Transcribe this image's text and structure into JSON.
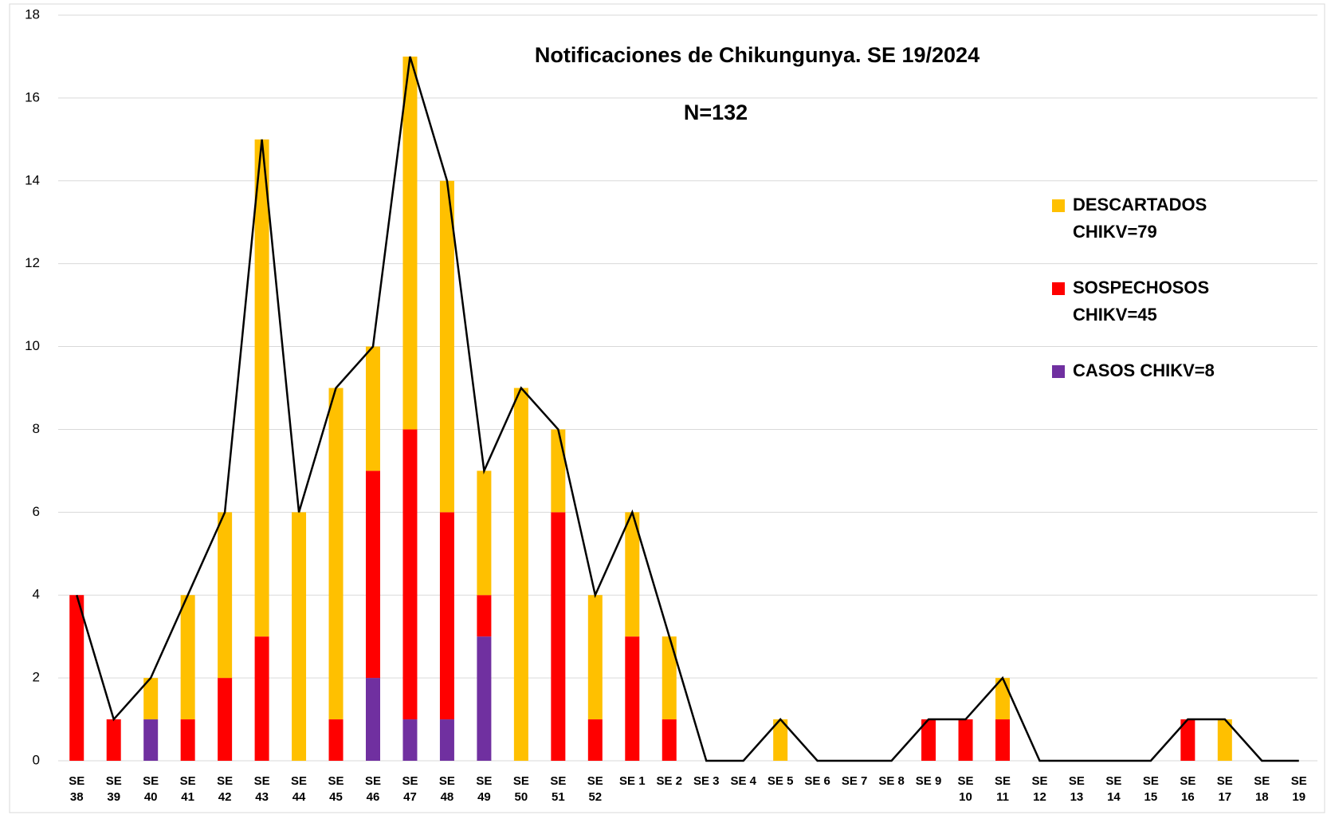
{
  "chart_data": {
    "type": "stacked_bar",
    "title": "Notificaciones de Chikungunya. SE 19/2024",
    "subtitle": "N=132",
    "categories": [
      "SE 38",
      "SE 39",
      "SE 40",
      "SE 41",
      "SE 42",
      "SE 43",
      "SE 44",
      "SE 45",
      "SE 46",
      "SE 47",
      "SE 48",
      "SE 49",
      "SE 50",
      "SE 51",
      "SE 52",
      "SE 1",
      "SE 2",
      "SE 3",
      "SE 4",
      "SE 5",
      "SE 6",
      "SE 7",
      "SE 8",
      "SE 9",
      "SE 10",
      "SE 11",
      "SE 12",
      "SE 13",
      "SE 14",
      "SE 15",
      "SE 16",
      "SE 17",
      "SE 18",
      "SE 19"
    ],
    "series": [
      {
        "name": "CASOS CHIKV=8",
        "color": "#7030a0",
        "values": [
          0,
          0,
          1,
          0,
          0,
          0,
          0,
          0,
          2,
          1,
          1,
          3,
          0,
          0,
          0,
          0,
          0,
          0,
          0,
          0,
          0,
          0,
          0,
          0,
          0,
          0,
          0,
          0,
          0,
          0,
          0,
          0,
          0,
          0
        ]
      },
      {
        "name": "SOSPECHOSOS CHIKV=45",
        "color": "#ff0000",
        "values": [
          4,
          1,
          0,
          1,
          2,
          3,
          0,
          1,
          5,
          7,
          5,
          1,
          0,
          6,
          1,
          3,
          1,
          0,
          0,
          0,
          0,
          0,
          0,
          1,
          1,
          1,
          0,
          0,
          0,
          0,
          1,
          0,
          0,
          0
        ]
      },
      {
        "name": "DESCARTADOS CHIKV=79",
        "color": "#ffc000",
        "values": [
          0,
          0,
          1,
          3,
          4,
          12,
          6,
          8,
          3,
          9,
          8,
          3,
          9,
          2,
          3,
          3,
          2,
          0,
          0,
          1,
          0,
          0,
          0,
          0,
          0,
          1,
          0,
          0,
          0,
          0,
          0,
          1,
          0,
          0
        ]
      }
    ],
    "line": {
      "color": "#000000",
      "values": [
        4,
        1,
        2,
        4,
        6,
        15,
        6,
        9,
        10,
        17,
        14,
        7,
        9,
        8,
        4,
        6,
        3,
        0,
        0,
        1,
        0,
        0,
        0,
        1,
        1,
        2,
        0,
        0,
        0,
        0,
        1,
        1,
        0,
        0
      ]
    },
    "ylim": [
      0,
      18
    ],
    "yticks": [
      0,
      2,
      4,
      6,
      8,
      10,
      12,
      14,
      16,
      18
    ],
    "grid": true,
    "legend": "right"
  }
}
